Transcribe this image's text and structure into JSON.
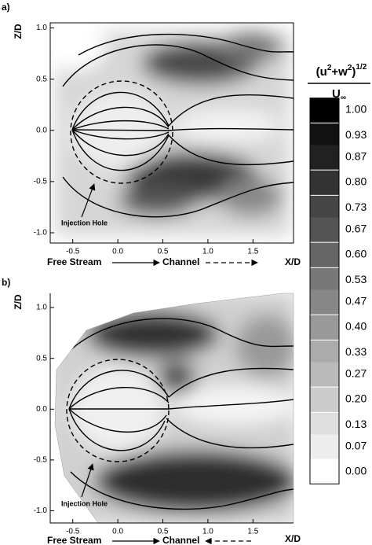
{
  "panels": [
    {
      "label": "a)",
      "x_label": "X/D",
      "y_label": "Z/D",
      "xlim": [
        -0.75,
        1.95
      ],
      "ylim": [
        -1.1,
        1.05
      ],
      "xticks": [
        -0.5,
        {
          "value": 0,
          "label": "0.0"
        },
        0.5,
        {
          "value": 1,
          "label": "1.0"
        },
        1.5
      ],
      "yticks": [
        {
          "value": 1,
          "label": "1.0"
        },
        0.5,
        {
          "value": 0,
          "label": "0.0"
        },
        -0.5,
        {
          "value": -1,
          "label": "-1.0"
        }
      ],
      "annotation": "Injection Hole",
      "flow_from": "Free Stream",
      "flow_to": "Channel"
    },
    {
      "label": "b)",
      "x_label": "X/D",
      "y_label": "Z/D",
      "xlim": [
        -0.75,
        1.95
      ],
      "ylim": [
        -1.12,
        1.14
      ],
      "xticks": [
        -0.5,
        {
          "value": 0,
          "label": "0.0"
        },
        0.5,
        {
          "value": 1,
          "label": "1.0"
        },
        1.5
      ],
      "yticks": [
        {
          "value": 1,
          "label": "1.0"
        },
        0.5,
        {
          "value": 0,
          "label": "0.0"
        },
        -0.5,
        {
          "value": -1,
          "label": "-1.0"
        }
      ],
      "annotation": "Injection Hole",
      "flow_from": "Free Stream",
      "flow_to": "Channel"
    }
  ],
  "colorbar": {
    "numerator_parts": [
      "(u",
      "2",
      "+w",
      "2",
      ")",
      "1/2"
    ],
    "denominator_parts": [
      "U",
      "∞"
    ],
    "ticks": [
      {
        "value": 1,
        "label": "1.00"
      },
      0.93,
      0.87,
      {
        "value": 0.8,
        "label": "0.80"
      },
      0.73,
      0.67,
      {
        "value": 0.6,
        "label": "0.60"
      },
      0.53,
      0.47,
      {
        "value": 0.4,
        "label": "0.40"
      },
      0.33,
      0.27,
      {
        "value": 0.2,
        "label": "0.20"
      },
      0.13,
      0.07,
      {
        "value": 0,
        "label": "0.00"
      }
    ]
  }
}
